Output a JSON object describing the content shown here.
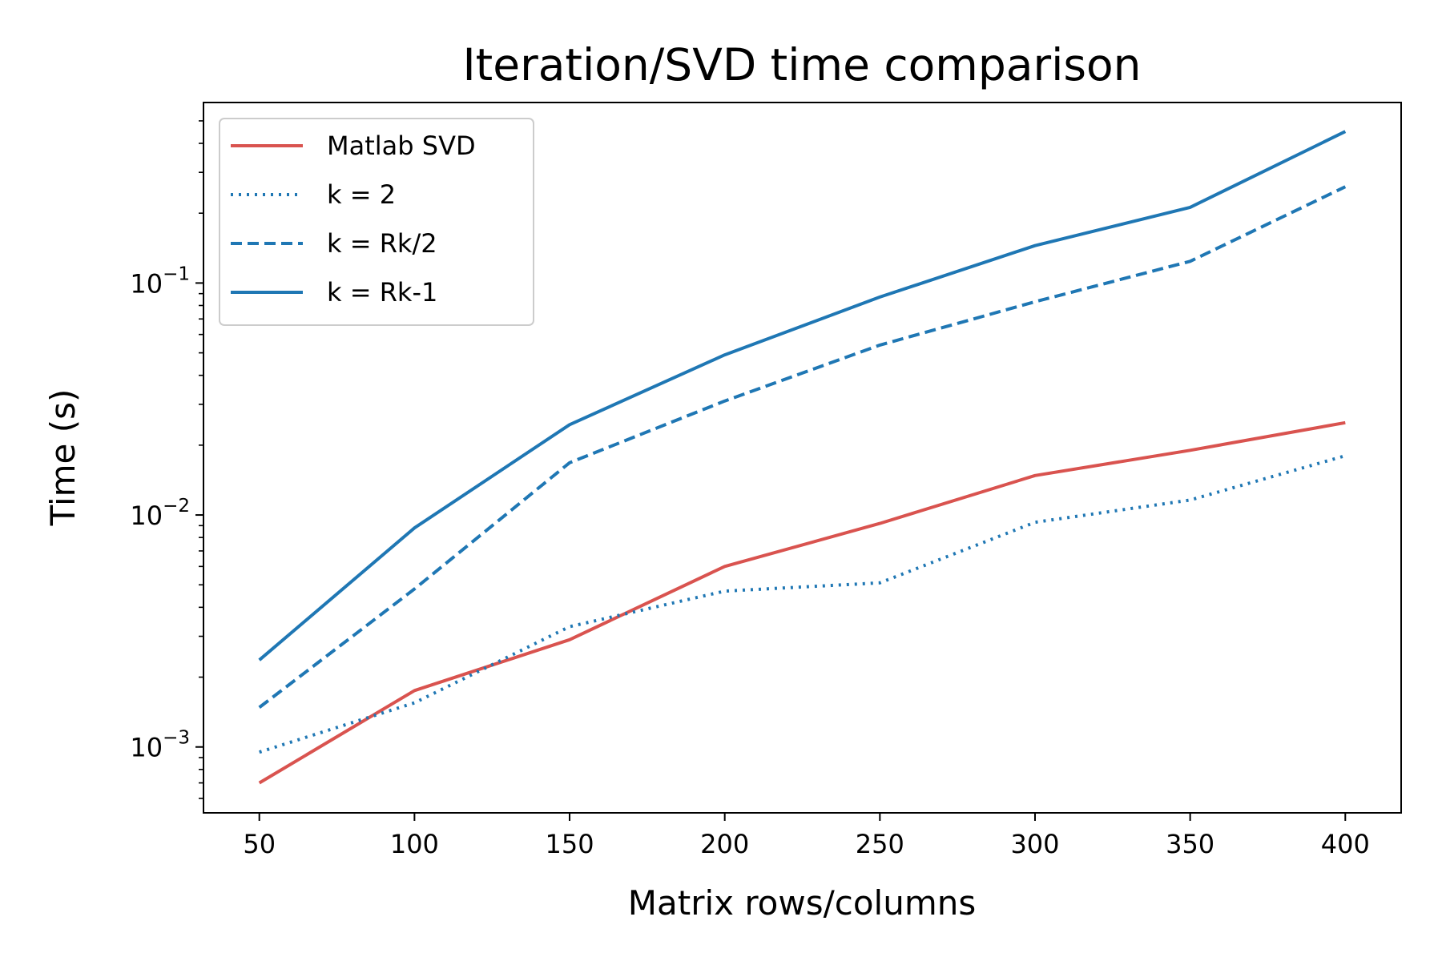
{
  "chart_data": {
    "type": "line",
    "title": "Iteration/SVD time comparison",
    "xlabel": "Matrix rows/columns",
    "ylabel": "Time (s)",
    "yscale": "log",
    "x": [
      50,
      100,
      150,
      200,
      250,
      300,
      350,
      400
    ],
    "xlim": [
      32,
      418
    ],
    "ylim": [
      0.00052,
      0.6
    ],
    "xticks": [
      50,
      100,
      150,
      200,
      250,
      300,
      350,
      400
    ],
    "xtick_labels": [
      "50",
      "100",
      "150",
      "200",
      "250",
      "300",
      "350",
      "400"
    ],
    "yticks": [
      {
        "value": 0.1,
        "base": "10",
        "exp": "−1"
      },
      {
        "value": 0.01,
        "base": "10",
        "exp": "−2"
      },
      {
        "value": 0.001,
        "base": "10",
        "exp": "−3"
      }
    ],
    "grid": false,
    "legend_position": "upper-left",
    "series": [
      {
        "name": "Matlab SVD",
        "values": [
          0.0007,
          0.00175,
          0.0029,
          0.006,
          0.0092,
          0.0148,
          0.019,
          0.025
        ],
        "color": "#d9534f",
        "style": "solid"
      },
      {
        "name": "k = 2",
        "values": [
          0.00095,
          0.00155,
          0.0033,
          0.0047,
          0.0051,
          0.0093,
          0.0116,
          0.018
        ],
        "color": "#1f77b4",
        "style": "dotted"
      },
      {
        "name": "k = Rk/2",
        "values": [
          0.00148,
          0.0048,
          0.0168,
          0.031,
          0.054,
          0.083,
          0.124,
          0.26
        ],
        "color": "#1f77b4",
        "style": "dashed"
      },
      {
        "name": "k = Rk-1",
        "values": [
          0.00237,
          0.0088,
          0.0245,
          0.049,
          0.087,
          0.145,
          0.212,
          0.45
        ],
        "color": "#1f77b4",
        "style": "solid"
      }
    ]
  }
}
